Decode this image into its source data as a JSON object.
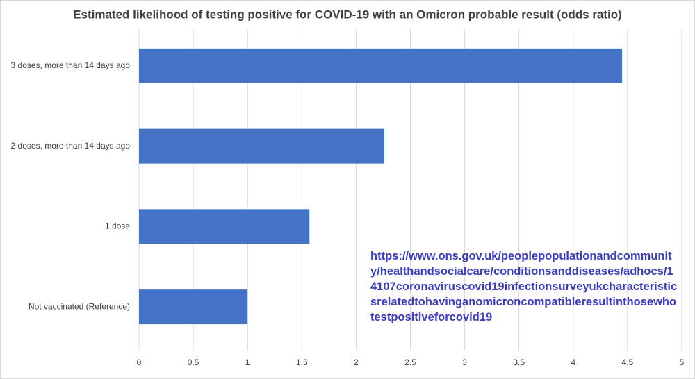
{
  "chart_data": {
    "type": "hbar",
    "title": "Estimated likelihood of testing positive for COVID-19 with an Omicron probable result (odds ratio)",
    "categories": [
      "3 doses, more than 14 days ago",
      "2 doses, more than 14 days ago",
      "1 dose",
      "Not vaccinated (Reference)"
    ],
    "values": [
      4.45,
      2.26,
      1.57,
      1.0
    ],
    "color": "#4472c4",
    "xlim": [
      0,
      5
    ],
    "xticks": [
      0,
      0.5,
      1,
      1.5,
      2,
      2.5,
      3,
      3.5,
      4,
      4.5,
      5
    ],
    "grid": true,
    "annotation": "https://www.ons.gov.uk/peoplepopulationandcommunity/healthandsocialcare/conditionsanddiseases/adhocs/14107coronaviruscovid19infectionsurveyukcharacteristicsrelatedtohavinganomicroncompatibleresultinthosewhotestpositiveforcovid19"
  }
}
